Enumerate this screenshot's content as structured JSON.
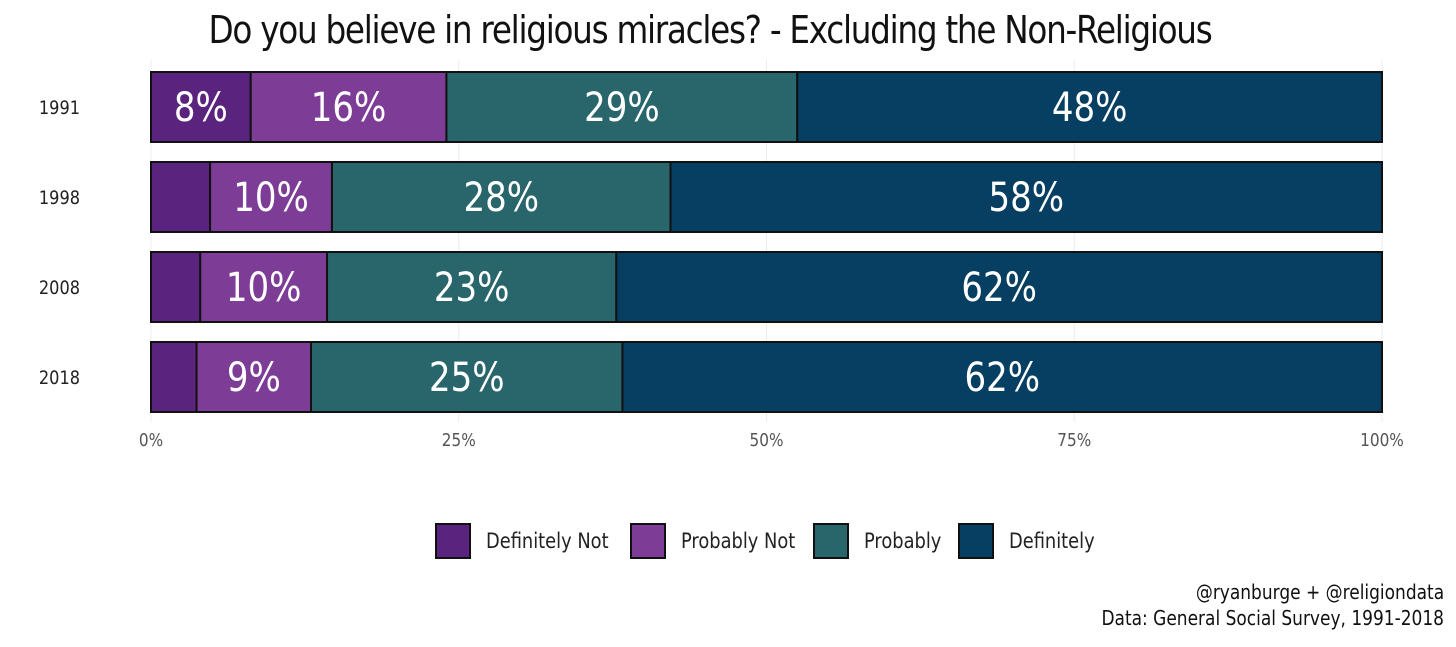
{
  "chart_data": {
    "type": "bar",
    "orientation": "horizontal",
    "stacked": true,
    "title": "Do you believe in religious miracles? - Excluding the Non-Religious",
    "categories": [
      "1991",
      "1998",
      "2008",
      "2018"
    ],
    "series": [
      {
        "name": "Definitely Not",
        "color": "#5a237d",
        "values": [
          8.1,
          4.8,
          4.0,
          3.7
        ]
      },
      {
        "name": "Probably Not",
        "color": "#7d3c96",
        "values": [
          15.9,
          9.9,
          10.3,
          9.3
        ]
      },
      {
        "name": "Probably",
        "color": "#29666c",
        "values": [
          28.5,
          27.5,
          23.5,
          25.3
        ]
      },
      {
        "name": "Definitely",
        "color": "#063f61",
        "values": [
          47.5,
          57.8,
          62.2,
          61.7
        ]
      }
    ],
    "data_labels": [
      [
        "8%",
        "16%",
        "29%",
        "48%"
      ],
      [
        "",
        "10%",
        "28%",
        "58%"
      ],
      [
        "",
        "10%",
        "23%",
        "62%"
      ],
      [
        "",
        "9%",
        "25%",
        "62%"
      ]
    ],
    "xlim": [
      0,
      100
    ],
    "xticks": [
      0,
      25,
      50,
      75,
      100
    ],
    "xtick_labels": [
      "0%",
      "25%",
      "50%",
      "75%",
      "100%"
    ],
    "xlabel": "",
    "ylabel": "",
    "grid": true,
    "legend": "bottom"
  },
  "caption": {
    "line1": "@ryanburge + @religiondata",
    "line2": "Data: General Social Survey, 1991-2018"
  }
}
